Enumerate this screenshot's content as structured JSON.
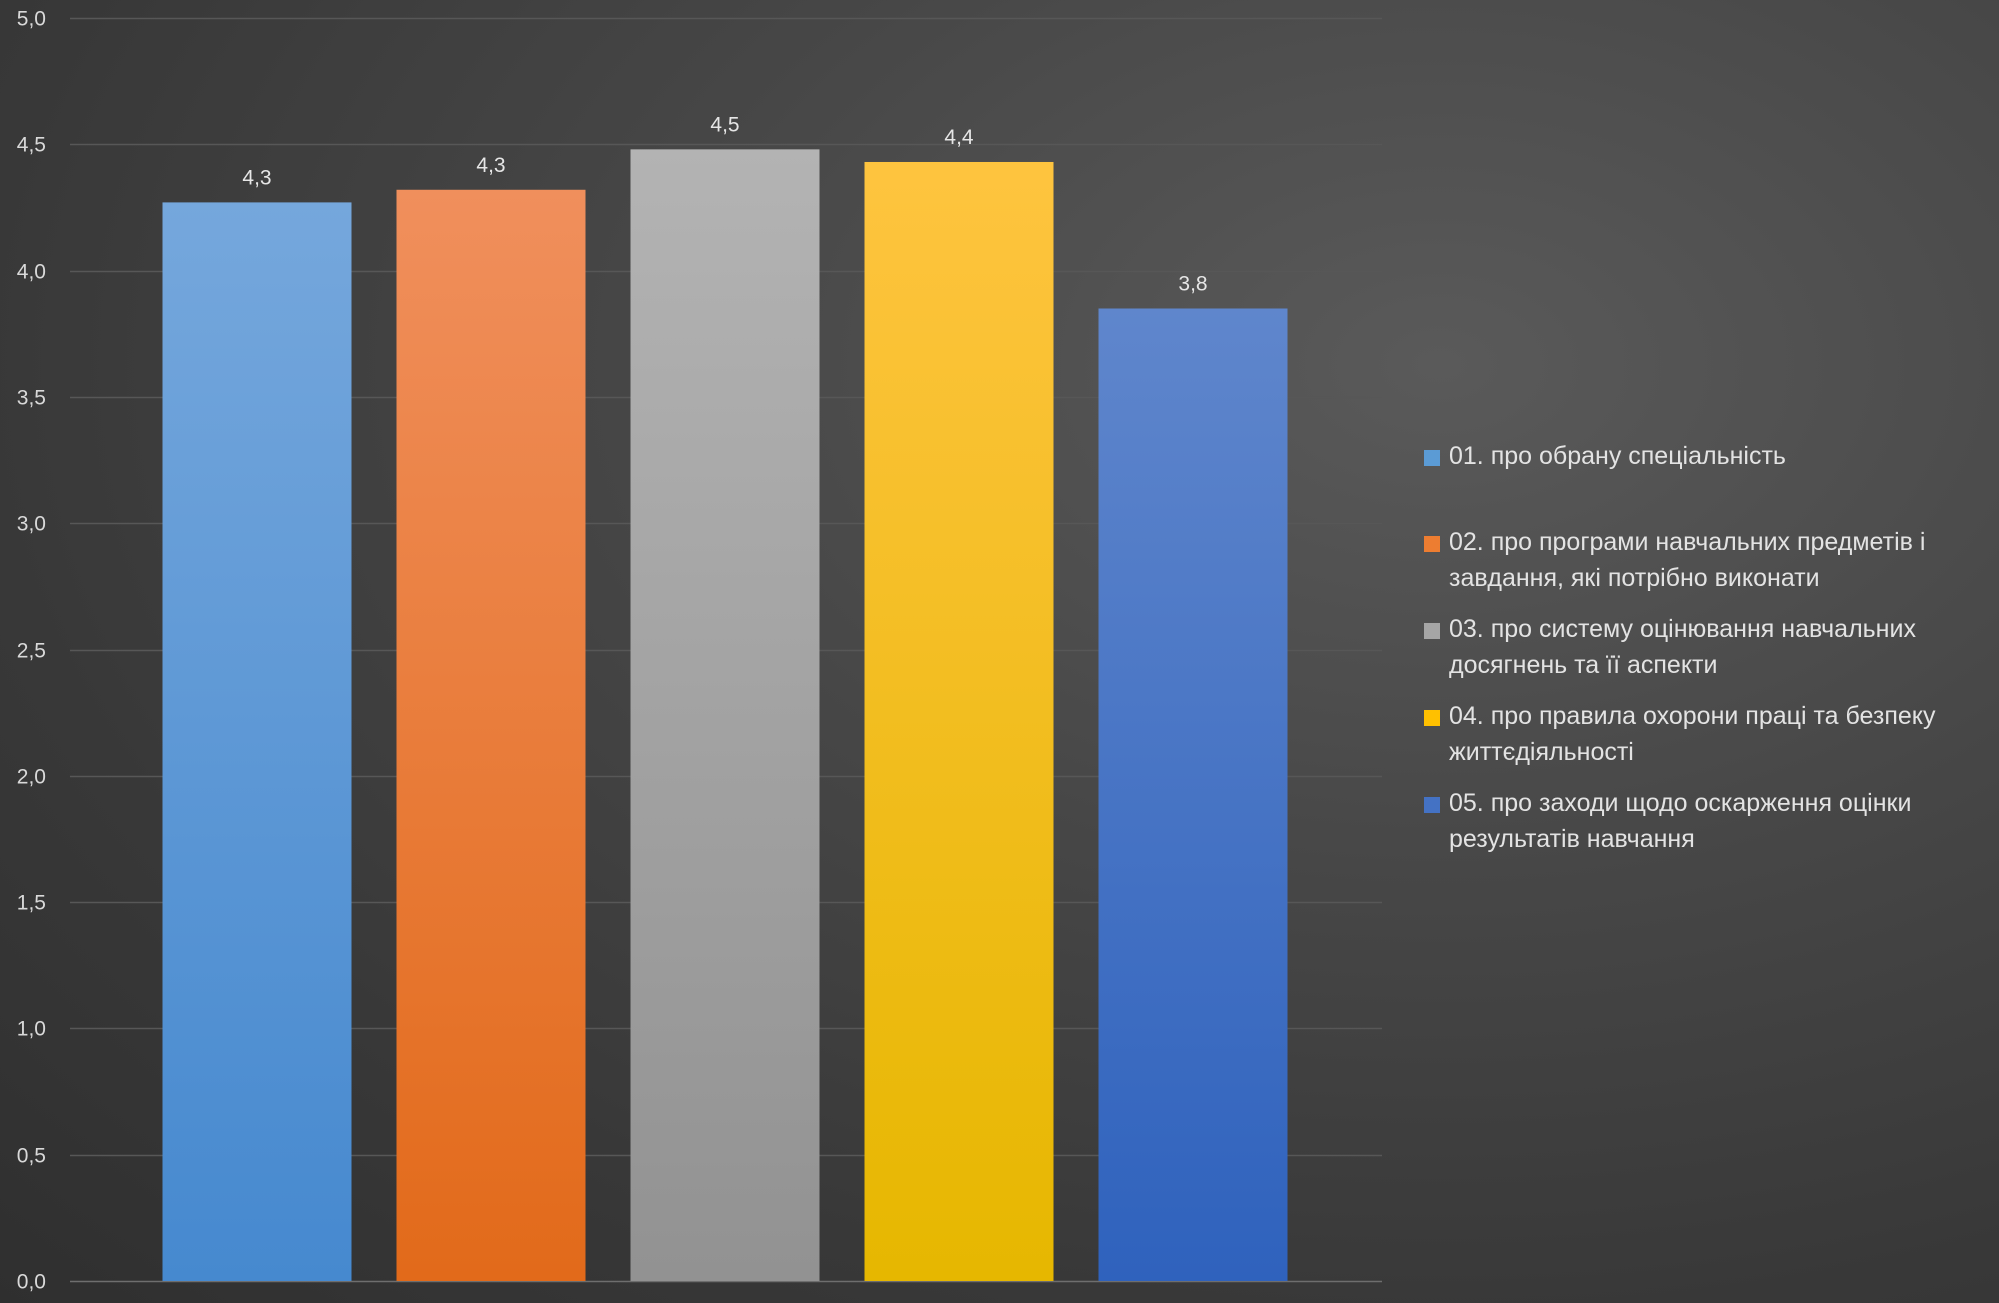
{
  "chart_data": {
    "type": "bar",
    "categories": [
      "01. про обрану спеціальність",
      "02. про програми навчальних предметів і завдання, які потрібно виконати",
      "03. про систему оцінювання навчальних досягнень та її аспекти",
      "04. про правила охорони праці та безпеку життєдіяльності",
      "05. про заходи щодо оскарження оцінки результатів навчання"
    ],
    "values": [
      4.27,
      4.32,
      4.48,
      4.43,
      3.85
    ],
    "data_labels": [
      "4,3",
      "4,3",
      "4,5",
      "4,4",
      "3,8"
    ],
    "colors": [
      [
        "#75a7dc",
        "#4689cf"
      ],
      [
        "#f08f5c",
        "#e26a1a"
      ],
      [
        "#b3b3b3",
        "#929292"
      ],
      [
        "#fec43f",
        "#e6b700"
      ],
      [
        "#5f86cc",
        "#2f62bd"
      ]
    ],
    "legend_swatch_colors": [
      "#5b9bd5",
      "#ed7d31",
      "#a5a5a5",
      "#ffc000",
      "#4472c4"
    ],
    "ylim": [
      0,
      5
    ],
    "y_ticks": [
      0,
      0.5,
      1,
      1.5,
      2,
      2.5,
      3,
      3.5,
      4,
      4.5,
      5
    ],
    "y_tick_labels": [
      "0,0",
      "0,5",
      "1,0",
      "1,5",
      "2,0",
      "2,5",
      "3,0",
      "3,5",
      "4,0",
      "4,5",
      "5,0"
    ],
    "grid": true,
    "legend_position": "right",
    "title": "",
    "xlabel": "",
    "ylabel": ""
  },
  "legend": {
    "items": [
      {
        "label": "01. про обрану спеціальність"
      },
      {
        "label": "02. про програми навчальних предметів і завдання, які потрібно виконати"
      },
      {
        "label": "03. про систему оцінювання навчальних досягнень та її аспекти"
      },
      {
        "label": "04. про правила охорони праці та безпеку життєдіяльності"
      },
      {
        "label": "05. про заходи щодо оскарження оцінки результатів навчання"
      }
    ]
  }
}
